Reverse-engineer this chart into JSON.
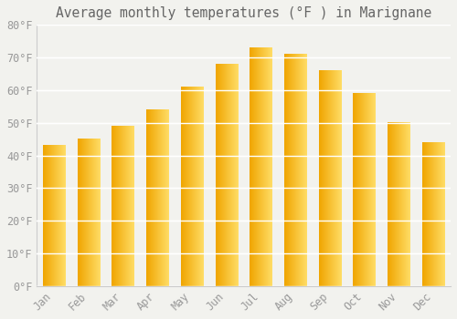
{
  "title": "Average monthly temperatures (°F ) in Marignane",
  "months": [
    "Jan",
    "Feb",
    "Mar",
    "Apr",
    "May",
    "Jun",
    "Jul",
    "Aug",
    "Sep",
    "Oct",
    "Nov",
    "Dec"
  ],
  "values": [
    43,
    45,
    49,
    54,
    61,
    68,
    73,
    71,
    66,
    59,
    50,
    44
  ],
  "bar_color_left": "#F0A500",
  "bar_color_right": "#FFD966",
  "background_color": "#F2F2EE",
  "ylim": [
    0,
    80
  ],
  "yticks": [
    0,
    10,
    20,
    30,
    40,
    50,
    60,
    70,
    80
  ],
  "ytick_labels": [
    "0°F",
    "10°F",
    "20°F",
    "30°F",
    "40°F",
    "50°F",
    "60°F",
    "70°F",
    "80°F"
  ],
  "grid_color": "#FFFFFF",
  "title_fontsize": 10.5,
  "tick_fontsize": 8.5,
  "font_color": "#999999",
  "bar_width": 0.65
}
